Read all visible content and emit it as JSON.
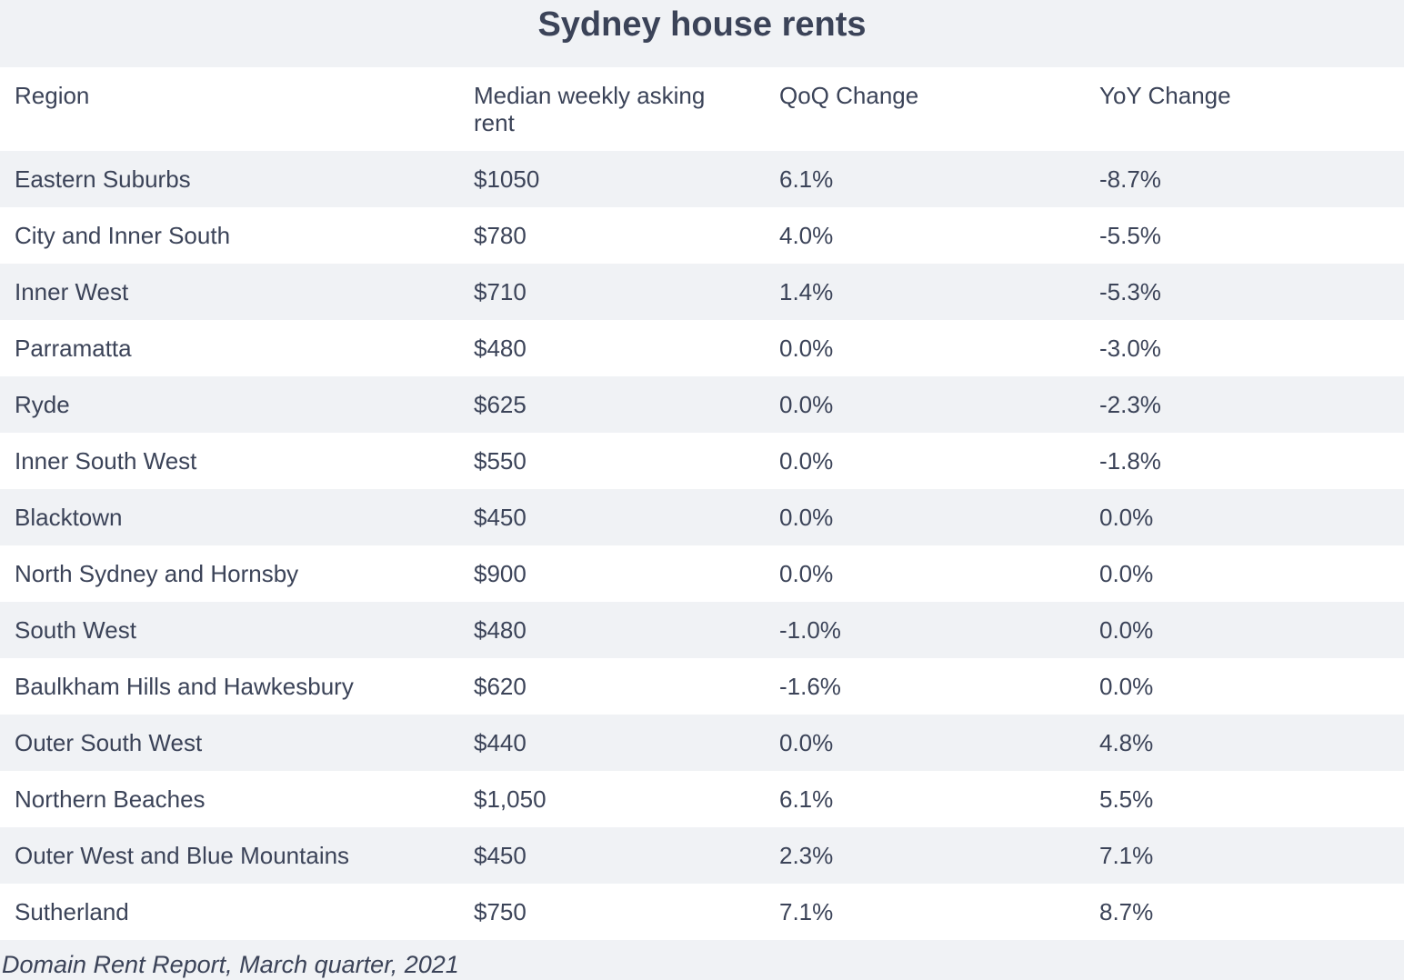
{
  "title": "Sydney house rents",
  "columns": [
    "Region",
    "Median weekly asking rent",
    "QoQ Change",
    "YoY Change"
  ],
  "rows": [
    [
      "Eastern Suburbs",
      "$1050",
      "6.1%",
      "-8.7%"
    ],
    [
      "City and Inner South",
      "$780",
      "4.0%",
      "-5.5%"
    ],
    [
      "Inner West",
      "$710",
      "1.4%",
      "-5.3%"
    ],
    [
      "Parramatta",
      "$480",
      "0.0%",
      "-3.0%"
    ],
    [
      "Ryde",
      "$625",
      "0.0%",
      "-2.3%"
    ],
    [
      "Inner South West",
      "$550",
      "0.0%",
      "-1.8%"
    ],
    [
      "Blacktown",
      "$450",
      "0.0%",
      "0.0%"
    ],
    [
      "North Sydney and Hornsby",
      "$900",
      "0.0%",
      "0.0%"
    ],
    [
      "South West",
      "$480",
      "-1.0%",
      "0.0%"
    ],
    [
      "Baulkham Hills and Hawkesbury",
      "$620",
      "-1.6%",
      "0.0%"
    ],
    [
      "Outer South West",
      "$440",
      "0.0%",
      "4.8%"
    ],
    [
      "Northern Beaches",
      "$1,050",
      "6.1%",
      "5.5%"
    ],
    [
      "Outer West and Blue Mountains",
      "$450",
      "2.3%",
      "7.1%"
    ],
    [
      "Sutherland",
      "$750",
      "7.1%",
      "8.7%"
    ]
  ],
  "source": "Domain Rent Report, March quarter, 2021",
  "colors": {
    "text": "#3b4358",
    "stripe": "#f0f2f5",
    "background": "#ffffff"
  },
  "chart_data": {
    "type": "table",
    "title": "Sydney house rents",
    "columns": [
      "Region",
      "Median weekly asking rent",
      "QoQ Change",
      "YoY Change"
    ],
    "rows": [
      {
        "region": "Eastern Suburbs",
        "rent": 1050,
        "qoq": 6.1,
        "yoy": -8.7
      },
      {
        "region": "City and Inner South",
        "rent": 780,
        "qoq": 4.0,
        "yoy": -5.5
      },
      {
        "region": "Inner West",
        "rent": 710,
        "qoq": 1.4,
        "yoy": -5.3
      },
      {
        "region": "Parramatta",
        "rent": 480,
        "qoq": 0.0,
        "yoy": -3.0
      },
      {
        "region": "Ryde",
        "rent": 625,
        "qoq": 0.0,
        "yoy": -2.3
      },
      {
        "region": "Inner South West",
        "rent": 550,
        "qoq": 0.0,
        "yoy": -1.8
      },
      {
        "region": "Blacktown",
        "rent": 450,
        "qoq": 0.0,
        "yoy": 0.0
      },
      {
        "region": "North Sydney and Hornsby",
        "rent": 900,
        "qoq": 0.0,
        "yoy": 0.0
      },
      {
        "region": "South West",
        "rent": 480,
        "qoq": -1.0,
        "yoy": 0.0
      },
      {
        "region": "Baulkham Hills and Hawkesbury",
        "rent": 620,
        "qoq": -1.6,
        "yoy": 0.0
      },
      {
        "region": "Outer South West",
        "rent": 440,
        "qoq": 0.0,
        "yoy": 4.8
      },
      {
        "region": "Northern Beaches",
        "rent": 1050,
        "qoq": 6.1,
        "yoy": 5.5
      },
      {
        "region": "Outer West and Blue Mountains",
        "rent": 450,
        "qoq": 2.3,
        "yoy": 7.1
      },
      {
        "region": "Sutherland",
        "rent": 750,
        "qoq": 7.1,
        "yoy": 8.7
      }
    ],
    "source": "Domain Rent Report, March quarter, 2021"
  }
}
